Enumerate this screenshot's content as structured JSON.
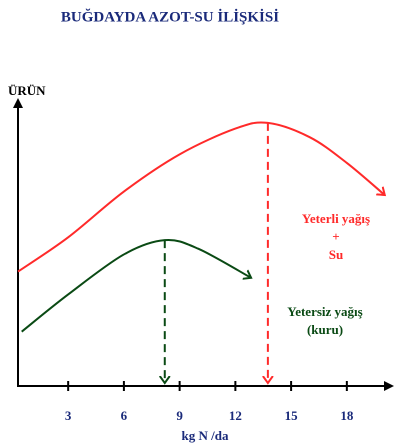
{
  "chart_data": {
    "type": "line",
    "title": "BUĞDAYDA AZOT-SU İLİŞKİSİ",
    "ylabel": "ÜRÜN",
    "xlabel": "kg N /da",
    "xlim": [
      0.3,
      20
    ],
    "xticks": [
      3,
      6,
      9,
      12,
      15,
      18
    ],
    "ylim": [
      0,
      100
    ],
    "series": [
      {
        "name": "Yeterli yağış + Su",
        "color": "#ff2a2a",
        "x": [
          0.3,
          3,
          6,
          9,
          12,
          13.75,
          16,
          18,
          20
        ],
        "values": [
          40,
          52,
          68,
          81,
          90,
          92,
          87,
          78,
          67
        ],
        "peak": 5
      },
      {
        "name": "Yetersiz yağış (kuru)",
        "color": "#0a4a14",
        "x": [
          0.5,
          3,
          6,
          8.2,
          10,
          12.8
        ],
        "values": [
          19,
          32,
          46,
          51,
          48,
          38
        ],
        "peak": 3
      }
    ],
    "annotations": [
      {
        "lines": [
          "Yeterli yağış",
          "+",
          "Su"
        ],
        "color": "#ff2a2a"
      },
      {
        "lines": [
          "Yetersiz yağış",
          "(kuru)"
        ],
        "color": "#0a4a14"
      }
    ]
  }
}
